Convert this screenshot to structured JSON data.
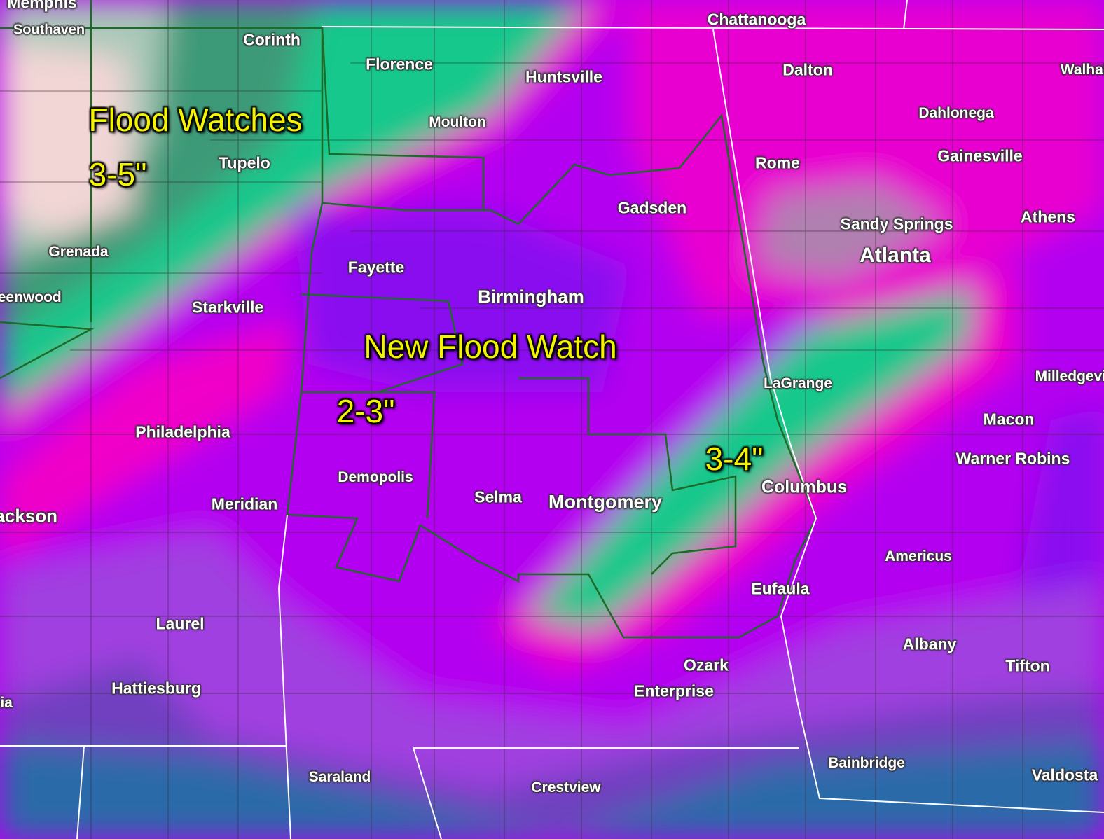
{
  "map": {
    "colors": {
      "light": "#f2d6d6",
      "green_gray": "#3e9a78",
      "green": "#14c88c",
      "magenta": "#f000c8",
      "purple": "#b400f0",
      "violet": "#8a10f0",
      "lavender": "#a040e0",
      "blue": "#2a6aa8",
      "watch_outline": "#1e6a28",
      "borders": "#ffffff",
      "annotation": "#f4f400"
    },
    "annotations": [
      "Flood Watches",
      "3-5\"",
      "New Flood Watch",
      "2-3\"",
      "3-4\""
    ],
    "cities": [
      "Memphis",
      "Southaven",
      "Corinth",
      "Florence",
      "Huntsville",
      "Chattanooga",
      "Dalton",
      "Moulton",
      "Tupelo",
      "Dahlonega",
      "Gainesville",
      "Rome",
      "Gadsden",
      "Sandy Springs",
      "Atlanta",
      "Athens",
      "Grenada",
      "Fayette",
      "Birmingham",
      "Greenwood",
      "Starkville",
      "LaGrange",
      "Milledgeville",
      "Macon",
      "Philadelphia",
      "Demopolis",
      "Warner Robins",
      "Selma",
      "Montgomery",
      "Columbus",
      "Meridian",
      "Jackson",
      "Americus",
      "Eufaula",
      "Laurel",
      "Albany",
      "Tifton",
      "Ozark",
      "Hattiesburg",
      "Enterprise",
      "Columbia",
      "Bainbridge",
      "Saraland",
      "Valdosta",
      "Crestview",
      "Walhalla"
    ]
  }
}
